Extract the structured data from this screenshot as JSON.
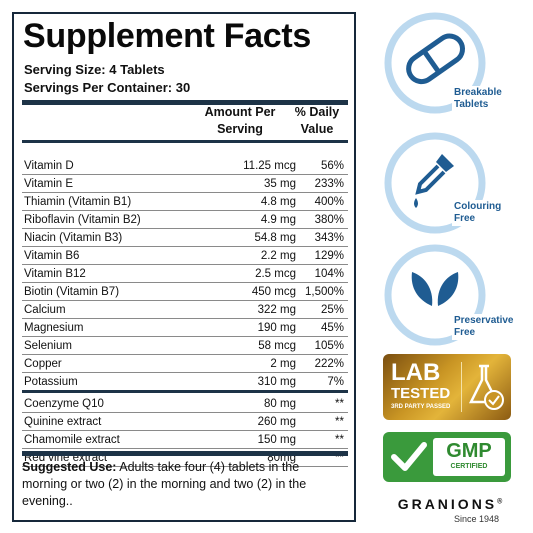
{
  "panel": {
    "title": "Supplement Facts",
    "serving_size": "Serving Size: 4 Tablets",
    "servings_per_container": "Servings Per Container: 30",
    "col_amount_line1": "Amount Per",
    "col_amount_line2": "Serving",
    "col_dv_line1": "% Daily",
    "col_dv_line2": "Value",
    "rows": [
      {
        "name": "Vitamin D",
        "amount": "11.25 mcg",
        "dv": "56%"
      },
      {
        "name": "Vitamin E",
        "amount": "35 mg",
        "dv": "233%"
      },
      {
        "name": "Thiamin (Vitamin B1)",
        "amount": "4.8 mg",
        "dv": "400%"
      },
      {
        "name": "Riboflavin (Vitamin B2)",
        "amount": "4.9 mg",
        "dv": "380%"
      },
      {
        "name": "Niacin (Vitamin B3)",
        "amount": "54.8 mg",
        "dv": "343%"
      },
      {
        "name": "Vitamin B6",
        "amount": "2.2 mg",
        "dv": "129%"
      },
      {
        "name": "Vitamin B12",
        "amount": "2.5 mcg",
        "dv": "104%"
      },
      {
        "name": "Biotin (Vitamin B7)",
        "amount": "450 mcg",
        "dv": "1,500%"
      },
      {
        "name": "Calcium",
        "amount": "322 mg",
        "dv": "25%"
      },
      {
        "name": "Magnesium",
        "amount": "190 mg",
        "dv": "45%"
      },
      {
        "name": "Selenium",
        "amount": "58 mcg",
        "dv": "105%"
      },
      {
        "name": "Copper",
        "amount": "2 mg",
        "dv": "222%"
      },
      {
        "name": "Potassium",
        "amount": "310 mg",
        "dv": "7%"
      },
      {
        "name": "Coenzyme Q10",
        "amount": "80 mg",
        "dv": "**"
      },
      {
        "name": "Quinine extract",
        "amount": "260 mg",
        "dv": "**"
      },
      {
        "name": "Chamomile extract",
        "amount": "150 mg",
        "dv": "**"
      },
      {
        "name": "Red vine extract",
        "amount": "80mg",
        "dv": "**"
      }
    ],
    "suggested_use_label": "Suggested Use:",
    "suggested_use_text": " Adults take four (4) tablets in the morning or two (2) in the morning and two (2) in the evening.."
  },
  "badges": {
    "breakable_line1": "Breakable",
    "breakable_line2": "Tablets",
    "colouring_line1": "Colouring",
    "colouring_line2": "Free",
    "preservative_line1": "Preservative",
    "preservative_line2": "Free",
    "lab_line1": "LAB",
    "lab_line2": "TESTED",
    "lab_line3": "3RD PARTY PASSED",
    "gmp_line1": "GMP",
    "gmp_line2": "CERTIFIED"
  },
  "brand": {
    "name": "GRANIONS",
    "reg": "®",
    "since": "Since 1948"
  },
  "colors": {
    "accent_blue": "#1f5c92",
    "ring_blue": "#bcd9ef",
    "panel_border": "#16283a",
    "gmp_green": "#3a9a3c",
    "lab_gold": "#c99524"
  }
}
